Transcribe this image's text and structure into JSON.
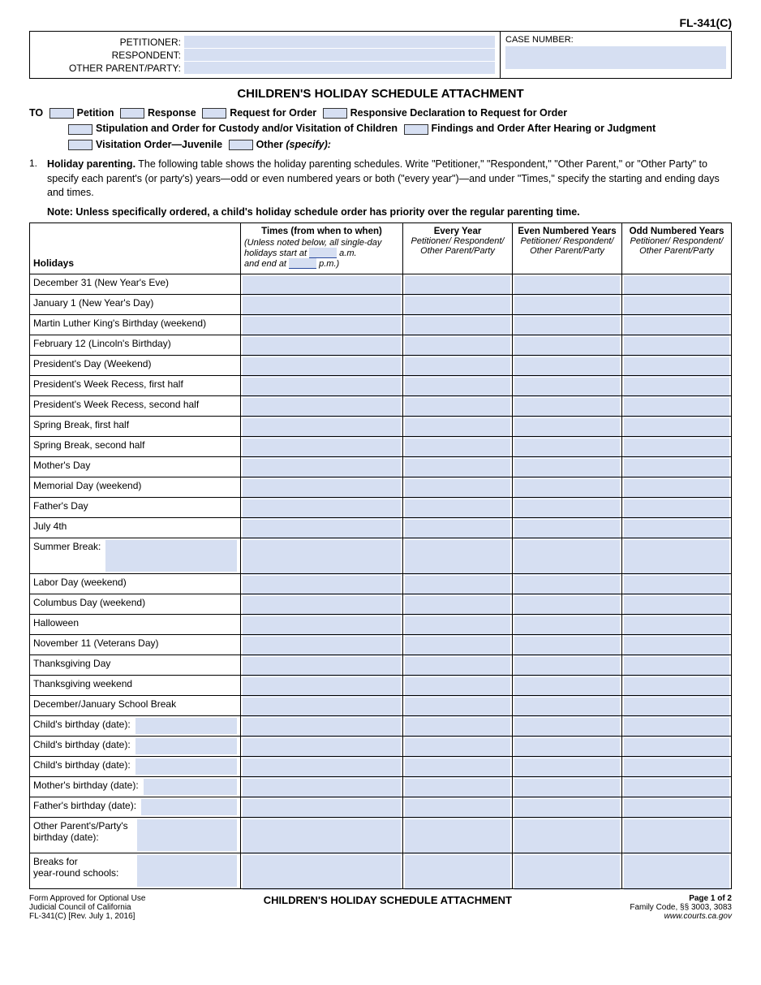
{
  "form_code": "FL-341(C)",
  "parties": {
    "petitioner_label": "PETITIONER:",
    "respondent_label": "RESPONDENT:",
    "other_label": "OTHER PARENT/PARTY:"
  },
  "case_number_label": "CASE NUMBER:",
  "title": "CHILDREN'S HOLIDAY SCHEDULE ATTACHMENT",
  "to": {
    "label": "TO",
    "opts": {
      "petition": "Petition",
      "response": "Response",
      "request": "Request for Order",
      "responsive": "Responsive Declaration to Request for Order",
      "stip": "Stipulation and Order for Custody and/or Visitation of Children",
      "findings": "Findings and Order After Hearing or Judgment",
      "juvenile": "Visitation Order—Juvenile",
      "other": "Other",
      "specify": "(specify):"
    }
  },
  "item1": {
    "num": "1.",
    "head": "Holiday parenting.",
    "text": " The following table shows the holiday parenting schedules. Write \"Petitioner,\" \"Respondent,\" \"Other Parent,\" or \"Other Party\" to specify each parent's (or party's) years—odd or even numbered years or both (\"every year\")—and under \"Times,\" specify the starting and ending days and times.",
    "note": "Note: Unless specifically ordered, a child's holiday schedule order has priority over the regular parenting time."
  },
  "headers": {
    "holidays": "Holidays",
    "times": "Times (from when to when)",
    "times_note1": "(Unless noted below, all single-day holidays start at",
    "times_am": "a.m.",
    "times_note2": "and end at",
    "times_pm": "p.m.)",
    "every": "Every Year",
    "even": "Even Numbered Years",
    "odd": "Odd Numbered Years",
    "sub": "Petitioner/\nRespondent/\nOther Parent/Party"
  },
  "holidays": [
    {
      "label": "December 31 (New Year's Eve)",
      "fill": false
    },
    {
      "label": "January 1 (New Year's Day)",
      "fill": false
    },
    {
      "label": "Martin Luther King's Birthday (weekend)",
      "fill": false
    },
    {
      "label": "February 12 (Lincoln's Birthday)",
      "fill": false
    },
    {
      "label": "President's Day (Weekend)",
      "fill": false
    },
    {
      "label": "President's Week Recess, first half",
      "fill": false
    },
    {
      "label": "President's Week Recess, second half",
      "fill": false
    },
    {
      "label": "Spring Break, first half",
      "fill": false
    },
    {
      "label": "Spring Break, second half",
      "fill": false
    },
    {
      "label": "Mother's Day",
      "fill": false
    },
    {
      "label": "Memorial Day (weekend)",
      "fill": false
    },
    {
      "label": "Father's Day",
      "fill": false
    },
    {
      "label": "July 4th",
      "fill": false
    },
    {
      "label": "Summer Break:",
      "fill": true,
      "tall": true
    },
    {
      "label": "Labor Day (weekend)",
      "fill": false
    },
    {
      "label": "Columbus Day (weekend)",
      "fill": false
    },
    {
      "label": "Halloween",
      "fill": false
    },
    {
      "label": "November 11 (Veterans Day)",
      "fill": false
    },
    {
      "label": "Thanksgiving Day",
      "fill": false
    },
    {
      "label": "Thanksgiving weekend",
      "fill": false
    },
    {
      "label": "December/January School Break",
      "fill": false
    },
    {
      "label": "Child's birthday ",
      "italic": "(date):",
      "fill": true
    },
    {
      "label": "Child's birthday ",
      "italic": "(date):",
      "fill": true
    },
    {
      "label": "Child's birthday ",
      "italic": "(date):",
      "fill": true
    },
    {
      "label": "Mother's birthday ",
      "italic": "(date):",
      "fill": true
    },
    {
      "label": "Father's birthday ",
      "italic": "(date):",
      "fill": true
    },
    {
      "label": "Other Parent's/Party's birthday ",
      "italic": "(date):",
      "fill": true,
      "tall": true,
      "wrap": true
    },
    {
      "label": "Breaks for\nyear-round schools:",
      "fill": true,
      "tall": true,
      "wrap": true
    }
  ],
  "footer": {
    "left1": "Form Approved for Optional Use",
    "left2": "Judicial Council of California",
    "left3": "FL-341(C) [Rev. July 1, 2016]",
    "mid": "CHILDREN'S HOLIDAY SCHEDULE ATTACHMENT",
    "right1": "Page 1 of 2",
    "right2": "Family Code, §§ 3003, 3083",
    "right3": "www.courts.ca.gov"
  },
  "colors": {
    "fill": "#d6dff2",
    "border": "#000000"
  }
}
